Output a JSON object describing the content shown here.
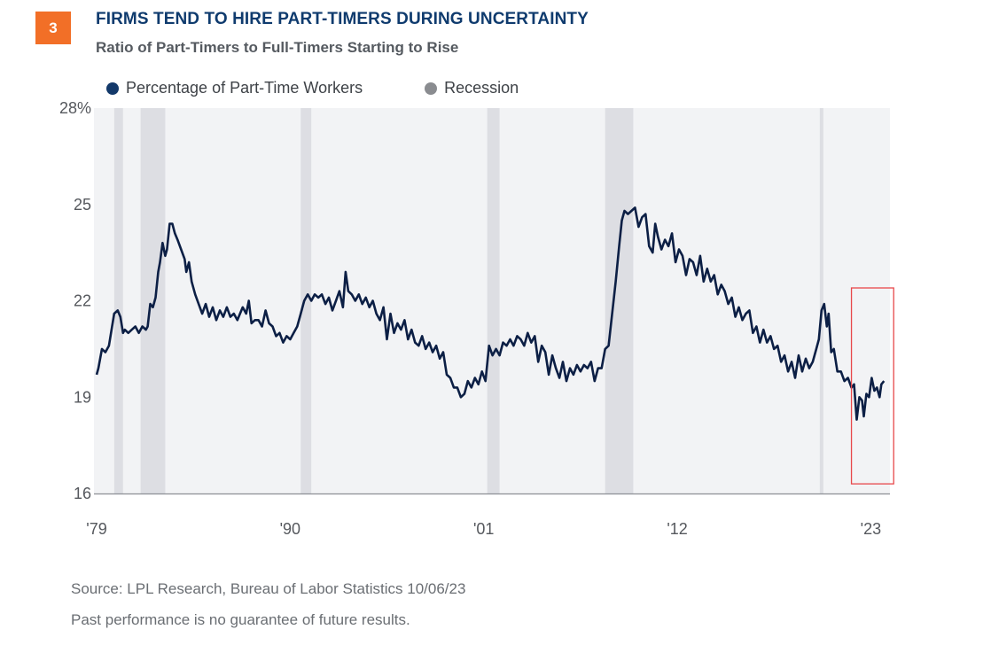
{
  "header": {
    "badge_number": "3",
    "title": "FIRMS TEND TO HIRE PART-TIMERS DURING UNCERTAINTY",
    "subtitle": "Ratio of Part-Timers to Full-Timers Starting to Rise"
  },
  "footer": {
    "source": "Source: LPL Research, Bureau of Labor Statistics  10/06/23",
    "disclaimer": "Past performance is no guarantee of future results."
  },
  "colors": {
    "badge": "#f26f27",
    "title": "#0f3b6e",
    "series_line": "#0c1f45",
    "legend_series_dot": "#13396a",
    "legend_recession_dot": "#8a8c90",
    "plot_background": "#f2f3f5",
    "recession_band": "#dddee3",
    "highlight_box": "#e8484b"
  },
  "chart_data": {
    "type": "line",
    "title": "FIRMS TEND TO HIRE PART-TIMERS DURING UNCERTAINTY",
    "subtitle": "Ratio of Part-Timers to Full-Timers Starting to Rise",
    "xlabel": "",
    "ylabel": "",
    "ylim": [
      16,
      28
    ],
    "xlim": [
      1979,
      2023.75
    ],
    "grid": false,
    "legend_position": "top-left",
    "y_ticks": [
      {
        "value": 28,
        "label": "28%"
      },
      {
        "value": 25,
        "label": "25"
      },
      {
        "value": 22,
        "label": "22"
      },
      {
        "value": 19,
        "label": "19"
      },
      {
        "value": 16,
        "label": "16"
      }
    ],
    "x_ticks": [
      {
        "value": 1979,
        "label": "'79"
      },
      {
        "value": 1990,
        "label": "'90"
      },
      {
        "value": 2001,
        "label": "'01"
      },
      {
        "value": 2012,
        "label": "'12"
      },
      {
        "value": 2023,
        "label": "'23"
      }
    ],
    "legend": [
      {
        "name": "Percentage of Part-Time Workers",
        "kind": "series"
      },
      {
        "name": "Recession",
        "kind": "band"
      }
    ],
    "recessions": [
      {
        "start": 1980.0,
        "end": 1980.5
      },
      {
        "start": 1981.5,
        "end": 1982.9
      },
      {
        "start": 1990.6,
        "end": 1991.2
      },
      {
        "start": 2001.2,
        "end": 2001.9
      },
      {
        "start": 2007.9,
        "end": 2009.5
      },
      {
        "start": 2020.1,
        "end": 2020.3
      }
    ],
    "highlight_box": {
      "x_start": 2021.9,
      "x_end": 2024.3,
      "y_start": 16.3,
      "y_end": 22.4
    },
    "series": [
      {
        "name": "Percentage of Part-Time Workers",
        "x": [
          1979.0,
          1979.1,
          1979.3,
          1979.5,
          1979.7,
          1980.0,
          1980.2,
          1980.35,
          1980.5,
          1980.6,
          1980.8,
          1981.0,
          1981.2,
          1981.4,
          1981.6,
          1981.8,
          1981.9,
          1982.05,
          1982.2,
          1982.35,
          1982.5,
          1982.6,
          1982.75,
          1982.9,
          1983.0,
          1983.15,
          1983.3,
          1983.45,
          1983.6,
          1983.8,
          1984.0,
          1984.1,
          1984.25,
          1984.4,
          1984.6,
          1984.8,
          1985.0,
          1985.2,
          1985.4,
          1985.6,
          1985.8,
          1986.0,
          1986.2,
          1986.4,
          1986.6,
          1986.8,
          1987.0,
          1987.3,
          1987.5,
          1987.65,
          1987.8,
          1988.0,
          1988.2,
          1988.4,
          1988.6,
          1988.8,
          1989.0,
          1989.2,
          1989.4,
          1989.6,
          1989.8,
          1990.0,
          1990.2,
          1990.4,
          1990.6,
          1990.8,
          1991.0,
          1991.2,
          1991.4,
          1991.6,
          1991.8,
          1992.0,
          1992.2,
          1992.4,
          1992.6,
          1992.8,
          1993.0,
          1993.15,
          1993.3,
          1993.5,
          1993.7,
          1993.9,
          1994.1,
          1994.3,
          1994.5,
          1994.7,
          1994.9,
          1995.1,
          1995.3,
          1995.5,
          1995.7,
          1995.9,
          1996.1,
          1996.3,
          1996.5,
          1996.7,
          1996.9,
          1997.1,
          1997.3,
          1997.5,
          1997.7,
          1997.9,
          1998.1,
          1998.3,
          1998.5,
          1998.7,
          1998.9,
          1999.1,
          1999.3,
          1999.5,
          1999.7,
          1999.9,
          2000.1,
          2000.3,
          2000.5,
          2000.7,
          2000.9,
          2001.1,
          2001.3,
          2001.5,
          2001.7,
          2001.9,
          2002.1,
          2002.3,
          2002.5,
          2002.7,
          2002.9,
          2003.1,
          2003.3,
          2003.5,
          2003.7,
          2003.9,
          2004.1,
          2004.3,
          2004.5,
          2004.7,
          2004.9,
          2005.1,
          2005.3,
          2005.5,
          2005.7,
          2005.9,
          2006.1,
          2006.3,
          2006.5,
          2006.7,
          2006.9,
          2007.1,
          2007.3,
          2007.5,
          2007.7,
          2007.9,
          2008.1,
          2008.3,
          2008.5,
          2008.7,
          2008.85,
          2009.0,
          2009.2,
          2009.4,
          2009.6,
          2009.8,
          2010.0,
          2010.2,
          2010.4,
          2010.6,
          2010.75,
          2010.9,
          2011.1,
          2011.3,
          2011.5,
          2011.7,
          2011.9,
          2012.1,
          2012.3,
          2012.5,
          2012.7,
          2012.9,
          2013.1,
          2013.3,
          2013.5,
          2013.7,
          2013.9,
          2014.1,
          2014.3,
          2014.5,
          2014.7,
          2014.9,
          2015.1,
          2015.3,
          2015.5,
          2015.7,
          2015.9,
          2016.1,
          2016.3,
          2016.5,
          2016.7,
          2016.9,
          2017.1,
          2017.3,
          2017.5,
          2017.7,
          2017.9,
          2018.1,
          2018.3,
          2018.5,
          2018.7,
          2018.9,
          2019.1,
          2019.3,
          2019.5,
          2019.7,
          2019.9,
          2020.05,
          2020.2,
          2020.35,
          2020.5,
          2020.6,
          2020.75,
          2020.9,
          2021.1,
          2021.3,
          2021.5,
          2021.7,
          2021.9,
          2022.05,
          2022.2,
          2022.35,
          2022.5,
          2022.6,
          2022.75,
          2022.9,
          2023.05,
          2023.2,
          2023.35,
          2023.5,
          2023.6,
          2023.75
        ],
        "values": [
          19.7,
          19.9,
          20.5,
          20.4,
          20.6,
          21.6,
          21.7,
          21.5,
          21.0,
          21.1,
          21.0,
          21.1,
          21.2,
          21.0,
          21.2,
          21.1,
          21.2,
          21.9,
          21.8,
          22.1,
          22.9,
          23.2,
          23.8,
          23.4,
          23.6,
          24.4,
          24.4,
          24.1,
          23.9,
          23.6,
          23.3,
          22.9,
          23.2,
          22.6,
          22.2,
          21.9,
          21.6,
          21.9,
          21.5,
          21.8,
          21.4,
          21.7,
          21.5,
          21.8,
          21.5,
          21.6,
          21.4,
          21.8,
          21.6,
          22.0,
          21.3,
          21.4,
          21.4,
          21.2,
          21.7,
          21.3,
          21.2,
          20.9,
          21.0,
          20.7,
          20.9,
          20.8,
          21.0,
          21.2,
          21.6,
          22.0,
          22.2,
          22.0,
          22.2,
          22.1,
          22.2,
          21.9,
          22.1,
          21.7,
          22.0,
          22.3,
          21.8,
          22.9,
          22.3,
          22.2,
          22.0,
          22.2,
          21.9,
          22.1,
          21.8,
          22.0,
          21.6,
          21.4,
          21.8,
          20.8,
          21.6,
          21.0,
          21.3,
          21.1,
          21.4,
          20.8,
          21.1,
          20.7,
          20.6,
          20.9,
          20.5,
          20.7,
          20.4,
          20.6,
          20.2,
          20.4,
          19.7,
          19.6,
          19.3,
          19.3,
          19.0,
          19.1,
          19.5,
          19.3,
          19.6,
          19.4,
          19.8,
          19.5,
          20.6,
          20.3,
          20.5,
          20.3,
          20.7,
          20.6,
          20.8,
          20.6,
          20.9,
          20.8,
          20.6,
          21.0,
          20.7,
          20.9,
          20.1,
          20.6,
          20.4,
          19.7,
          20.3,
          19.9,
          19.6,
          20.1,
          19.5,
          19.9,
          19.7,
          20.0,
          19.8,
          20.0,
          19.9,
          20.1,
          19.5,
          19.9,
          19.9,
          20.5,
          20.6,
          21.6,
          22.6,
          23.7,
          24.5,
          24.8,
          24.7,
          24.8,
          24.9,
          24.3,
          24.6,
          24.7,
          23.7,
          23.5,
          24.4,
          24.0,
          23.6,
          23.9,
          23.7,
          24.1,
          23.2,
          23.6,
          23.4,
          22.8,
          23.3,
          23.2,
          22.8,
          23.4,
          22.6,
          23.0,
          22.6,
          22.8,
          22.2,
          22.5,
          22.3,
          21.9,
          22.1,
          21.5,
          21.8,
          21.4,
          21.6,
          21.7,
          21.0,
          21.2,
          20.7,
          21.1,
          20.7,
          20.9,
          20.5,
          20.6,
          20.1,
          20.3,
          19.8,
          20.1,
          19.6,
          20.3,
          19.8,
          20.2,
          19.9,
          20.1,
          20.5,
          20.8,
          21.7,
          21.9,
          21.2,
          21.6,
          20.4,
          20.5,
          19.8,
          19.8,
          19.5,
          19.6,
          19.3,
          19.4,
          18.3,
          19.0,
          18.9,
          18.4,
          19.1,
          19.0,
          19.6,
          19.2,
          19.3,
          19.0,
          19.4,
          19.5
        ]
      }
    ]
  }
}
